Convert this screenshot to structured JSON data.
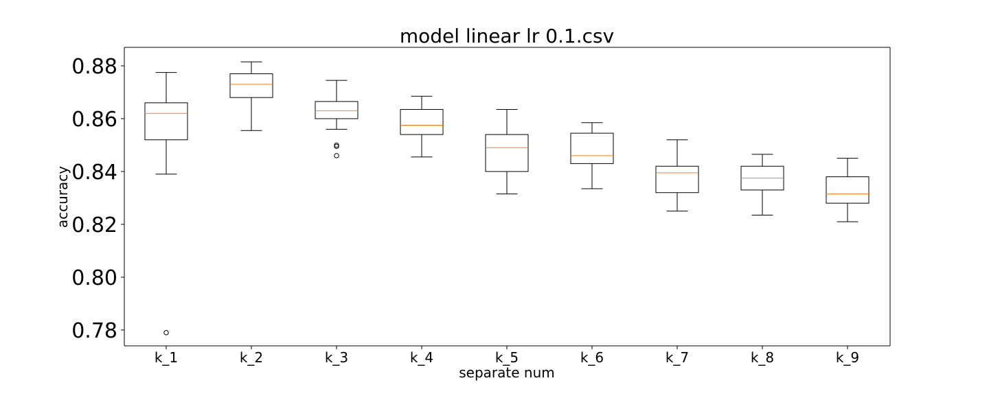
{
  "chart_data": {
    "type": "box",
    "title": "model linear lr 0.1.csv",
    "xlabel": "separate num",
    "ylabel": "accuracy",
    "ylim": [
      0.774,
      0.887
    ],
    "yticks": [
      "0.78",
      "0.80",
      "0.82",
      "0.84",
      "0.86",
      "0.88"
    ],
    "grid": false,
    "colors": {
      "box": "#000000",
      "median": "#ff7f0e",
      "outlier": "#000000"
    },
    "categories": [
      "k_1",
      "k_2",
      "k_3",
      "k_4",
      "k_5",
      "k_6",
      "k_7",
      "k_8",
      "k_9"
    ],
    "boxes": [
      {
        "whislo": 0.839,
        "q1": 0.852,
        "med": 0.862,
        "q3": 0.866,
        "whishi": 0.8775,
        "fliers": [
          0.779
        ]
      },
      {
        "whislo": 0.8555,
        "q1": 0.868,
        "med": 0.873,
        "q3": 0.877,
        "whishi": 0.8815,
        "fliers": []
      },
      {
        "whislo": 0.856,
        "q1": 0.86,
        "med": 0.863,
        "q3": 0.8665,
        "whishi": 0.8745,
        "fliers": [
          0.85,
          0.8495,
          0.846
        ]
      },
      {
        "whislo": 0.8455,
        "q1": 0.854,
        "med": 0.8575,
        "q3": 0.8635,
        "whishi": 0.8685,
        "fliers": []
      },
      {
        "whislo": 0.8315,
        "q1": 0.84,
        "med": 0.849,
        "q3": 0.854,
        "whishi": 0.8635,
        "fliers": []
      },
      {
        "whislo": 0.8335,
        "q1": 0.843,
        "med": 0.846,
        "q3": 0.8545,
        "whishi": 0.8585,
        "fliers": []
      },
      {
        "whislo": 0.825,
        "q1": 0.832,
        "med": 0.8395,
        "q3": 0.842,
        "whishi": 0.852,
        "fliers": []
      },
      {
        "whislo": 0.8235,
        "q1": 0.833,
        "med": 0.8375,
        "q3": 0.842,
        "whishi": 0.8465,
        "fliers": []
      },
      {
        "whislo": 0.821,
        "q1": 0.828,
        "med": 0.8315,
        "q3": 0.838,
        "whishi": 0.845,
        "fliers": []
      }
    ]
  }
}
